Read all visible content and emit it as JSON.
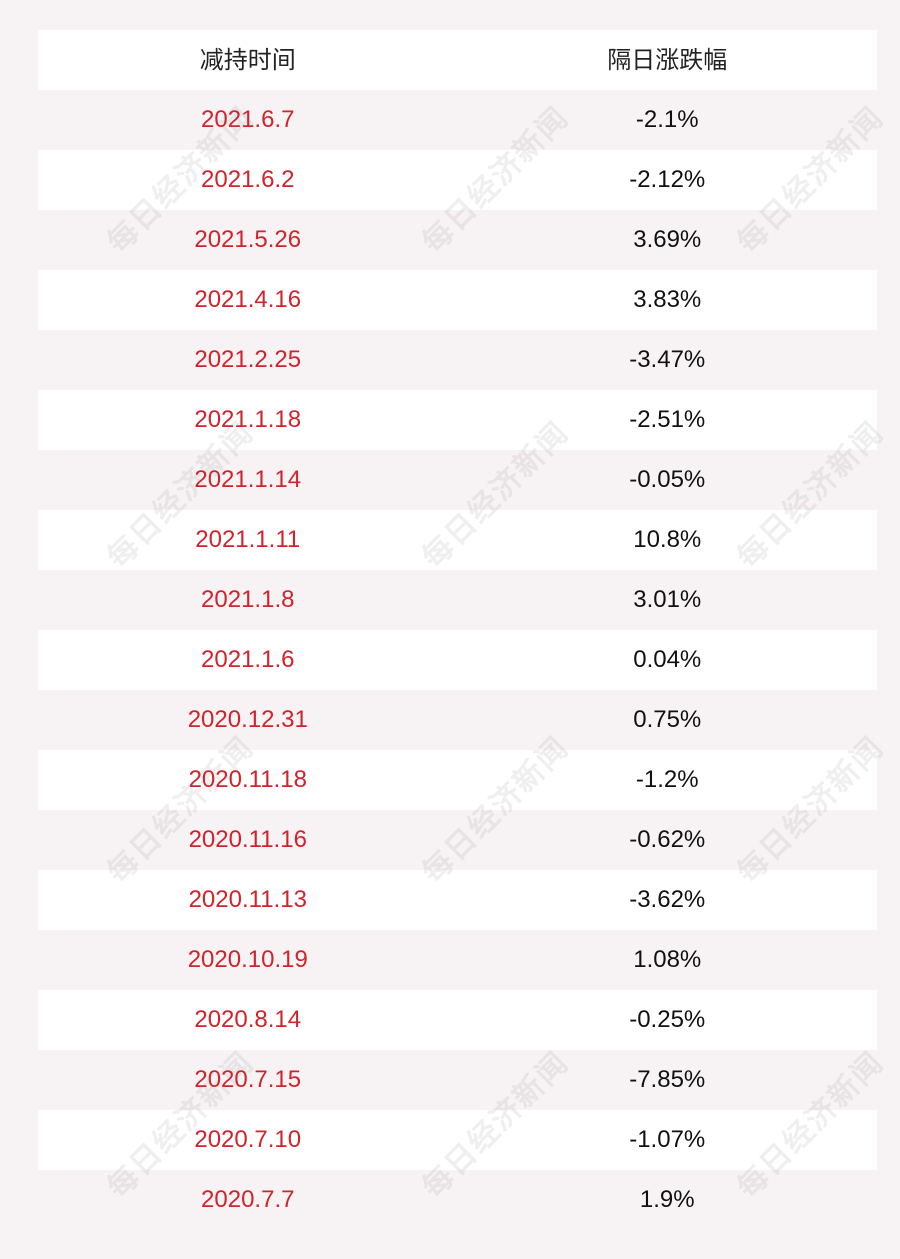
{
  "table": {
    "headers": {
      "date": "减持时间",
      "change": "隔日涨跌幅"
    },
    "rows": [
      {
        "date": "2021.6.7",
        "change": "-2.1%"
      },
      {
        "date": "2021.6.2",
        "change": "-2.12%"
      },
      {
        "date": "2021.5.26",
        "change": "3.69%"
      },
      {
        "date": "2021.4.16",
        "change": "3.83%"
      },
      {
        "date": "2021.2.25",
        "change": "-3.47%"
      },
      {
        "date": "2021.1.18",
        "change": "-2.51%"
      },
      {
        "date": "2021.1.14",
        "change": "-0.05%"
      },
      {
        "date": "2021.1.11",
        "change": "10.8%"
      },
      {
        "date": "2021.1.8",
        "change": "3.01%"
      },
      {
        "date": "2021.1.6",
        "change": "0.04%"
      },
      {
        "date": "2020.12.31",
        "change": "0.75%"
      },
      {
        "date": "2020.11.18",
        "change": "-1.2%"
      },
      {
        "date": "2020.11.16",
        "change": "-0.62%"
      },
      {
        "date": "2020.11.13",
        "change": "-3.62%"
      },
      {
        "date": "2020.10.19",
        "change": "1.08%"
      },
      {
        "date": "2020.8.14",
        "change": "-0.25%"
      },
      {
        "date": "2020.7.15",
        "change": "-7.85%"
      },
      {
        "date": "2020.7.10",
        "change": "-1.07%"
      },
      {
        "date": "2020.7.7",
        "change": "1.9%"
      }
    ]
  },
  "watermark": {
    "text": "每日经济新闻"
  },
  "colors": {
    "date_text": "#d0232c",
    "change_text": "#111111",
    "row_white": "#ffffff",
    "row_tinted": "#f7f3f4"
  }
}
